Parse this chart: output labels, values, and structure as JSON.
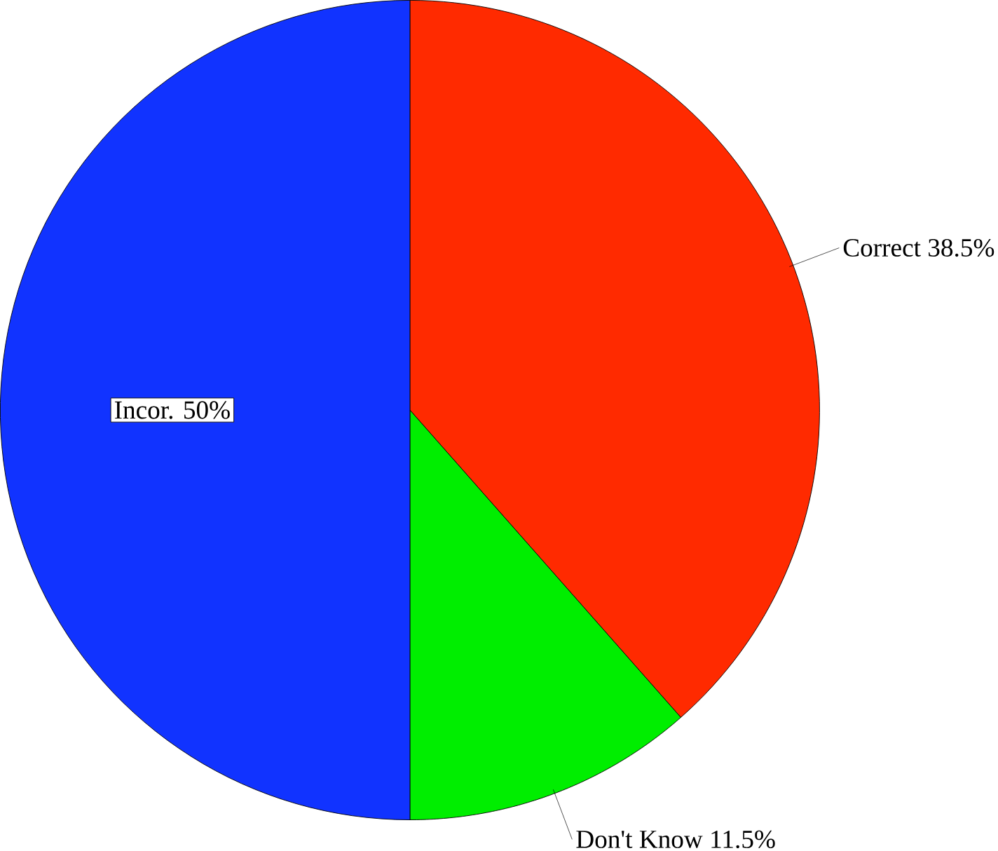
{
  "chart_data": {
    "type": "pie",
    "categories": [
      "Correct",
      "Don't Know",
      "Incor."
    ],
    "values": [
      38.5,
      11.5,
      50
    ],
    "value_labels": [
      "38.5%",
      "11.5%",
      "50%"
    ],
    "colors": [
      "#ff2a00",
      "#00ee00",
      "#1133ff"
    ]
  }
}
